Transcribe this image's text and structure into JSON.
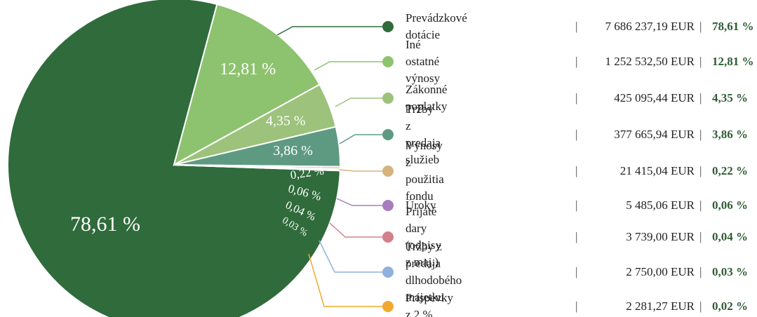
{
  "chart_data": {
    "type": "pie",
    "categories": [
      "Prevádzkové dotácie",
      "Iné ostatné výnosy",
      "Zákonné poplatky",
      "Tržby z predaja služieb",
      "Výnosy z použitia fondu",
      "Úroky",
      "Prijaté dary (odpisy z maj.)",
      "Tržby z predaja\ndlhodobého majetku",
      "Príspevky z 2 %"
    ],
    "values": [
      78.61,
      12.81,
      4.35,
      3.86,
      0.22,
      0.06,
      0.04,
      0.03,
      0.02
    ],
    "value_labels": [
      "78,61 %",
      "12,81 %",
      "4,35 %",
      "3,86 %",
      "0,22 %",
      "0,06 %",
      "0,04 %",
      "0,03 %",
      "0,02 %"
    ],
    "amounts": [
      "7 686 237,19 EUR",
      "1 252 532,50 EUR",
      "425 095,44 EUR",
      "377 665,94 EUR",
      "21 415,04 EUR",
      "5 485,06 EUR",
      "3 739,00 EUR",
      "2 750,00 EUR",
      "2 281,27 EUR"
    ],
    "colors": [
      "#2f6b3b",
      "#8dc26f",
      "#9dc27b",
      "#5e9a82",
      "#d6b37e",
      "#a77cbd",
      "#d3808b",
      "#8fb1dc",
      "#f0a92f"
    ]
  }
}
